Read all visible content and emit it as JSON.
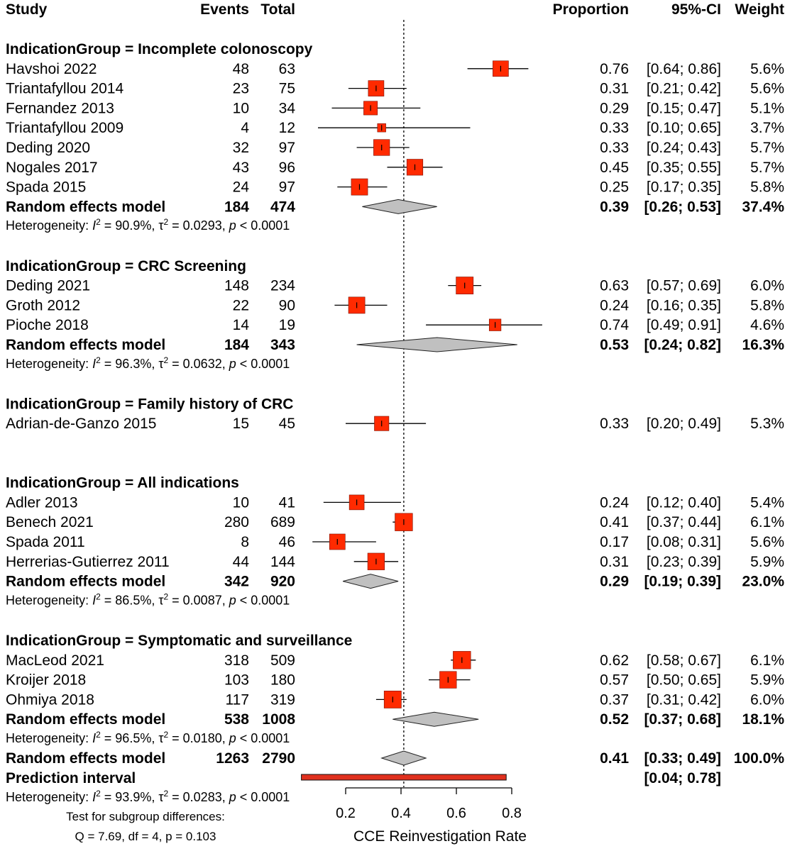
{
  "chart_data": {
    "type": "forest",
    "header": {
      "study": "Study",
      "events": "Events",
      "total": "Total",
      "proportion": "Proportion",
      "ci": "95%-CI",
      "weight": "Weight"
    },
    "groups": [
      {
        "title": "IndicationGroup = Incomplete colonoscopy",
        "studies": [
          {
            "name": "Havshoi 2022",
            "events": "48",
            "total": "63",
            "prop": 0.76,
            "lo": 0.64,
            "hi": 0.86,
            "prop_text": "0.76",
            "ci_text": "[0.64; 0.86]",
            "weight": 5.6,
            "weight_text": "5.6%"
          },
          {
            "name": "Triantafyllou 2014",
            "events": "23",
            "total": "75",
            "prop": 0.31,
            "lo": 0.21,
            "hi": 0.42,
            "prop_text": "0.31",
            "ci_text": "[0.21; 0.42]",
            "weight": 5.6,
            "weight_text": "5.6%"
          },
          {
            "name": "Fernandez 2013",
            "events": "10",
            "total": "34",
            "prop": 0.29,
            "lo": 0.15,
            "hi": 0.47,
            "prop_text": "0.29",
            "ci_text": "[0.15; 0.47]",
            "weight": 5.1,
            "weight_text": "5.1%"
          },
          {
            "name": "Triantafyllou 2009",
            "events": "4",
            "total": "12",
            "prop": 0.33,
            "lo": 0.1,
            "hi": 0.65,
            "prop_text": "0.33",
            "ci_text": "[0.10; 0.65]",
            "weight": 3.7,
            "weight_text": "3.7%"
          },
          {
            "name": "Deding 2020",
            "events": "32",
            "total": "97",
            "prop": 0.33,
            "lo": 0.24,
            "hi": 0.43,
            "prop_text": "0.33",
            "ci_text": "[0.24; 0.43]",
            "weight": 5.7,
            "weight_text": "5.7%"
          },
          {
            "name": "Nogales 2017",
            "events": "43",
            "total": "96",
            "prop": 0.45,
            "lo": 0.35,
            "hi": 0.55,
            "prop_text": "0.45",
            "ci_text": "[0.35; 0.55]",
            "weight": 5.7,
            "weight_text": "5.7%"
          },
          {
            "name": "Spada 2015",
            "events": "24",
            "total": "97",
            "prop": 0.25,
            "lo": 0.17,
            "hi": 0.35,
            "prop_text": "0.25",
            "ci_text": "[0.17; 0.35]",
            "weight": 5.8,
            "weight_text": "5.8%"
          }
        ],
        "model": {
          "label": "Random effects model",
          "events": "184",
          "total": "474",
          "prop": 0.39,
          "lo": 0.26,
          "hi": 0.53,
          "prop_text": "0.39",
          "ci_text": "[0.26; 0.53]",
          "weight_text": "37.4%"
        },
        "het": {
          "i2": "90.9%",
          "tau2": "0.0293",
          "p": "< 0.0001"
        }
      },
      {
        "title": "IndicationGroup = CRC Screening",
        "studies": [
          {
            "name": "Deding 2021",
            "events": "148",
            "total": "234",
            "prop": 0.63,
            "lo": 0.57,
            "hi": 0.69,
            "prop_text": "0.63",
            "ci_text": "[0.57; 0.69]",
            "weight": 6.0,
            "weight_text": "6.0%"
          },
          {
            "name": "Groth 2012",
            "events": "22",
            "total": "90",
            "prop": 0.24,
            "lo": 0.16,
            "hi": 0.35,
            "prop_text": "0.24",
            "ci_text": "[0.16; 0.35]",
            "weight": 5.8,
            "weight_text": "5.8%"
          },
          {
            "name": "Pioche 2018",
            "events": "14",
            "total": "19",
            "prop": 0.74,
            "lo": 0.49,
            "hi": 0.91,
            "prop_text": "0.74",
            "ci_text": "[0.49; 0.91]",
            "weight": 4.6,
            "weight_text": "4.6%"
          }
        ],
        "model": {
          "label": "Random effects model",
          "events": "184",
          "total": "343",
          "prop": 0.53,
          "lo": 0.24,
          "hi": 0.82,
          "prop_text": "0.53",
          "ci_text": "[0.24; 0.82]",
          "weight_text": "16.3%"
        },
        "het": {
          "i2": "96.3%",
          "tau2": "0.0632",
          "p": "< 0.0001"
        }
      },
      {
        "title": "IndicationGroup = Family history of CRC",
        "studies": [
          {
            "name": "Adrian-de-Ganzo 2015",
            "events": "15",
            "total": "45",
            "prop": 0.33,
            "lo": 0.2,
            "hi": 0.49,
            "prop_text": "0.33",
            "ci_text": "[0.20; 0.49]",
            "weight": 5.3,
            "weight_text": "5.3%"
          }
        ],
        "model": null,
        "het": null
      },
      {
        "title": "IndicationGroup = All indications",
        "studies": [
          {
            "name": "Adler 2013",
            "events": "10",
            "total": "41",
            "prop": 0.24,
            "lo": 0.12,
            "hi": 0.4,
            "prop_text": "0.24",
            "ci_text": "[0.12; 0.40]",
            "weight": 5.4,
            "weight_text": "5.4%"
          },
          {
            "name": "Benech 2021",
            "events": "280",
            "total": "689",
            "prop": 0.41,
            "lo": 0.37,
            "hi": 0.44,
            "prop_text": "0.41",
            "ci_text": "[0.37; 0.44]",
            "weight": 6.1,
            "weight_text": "6.1%"
          },
          {
            "name": "Spada 2011",
            "events": "8",
            "total": "46",
            "prop": 0.17,
            "lo": 0.08,
            "hi": 0.31,
            "prop_text": "0.17",
            "ci_text": "[0.08; 0.31]",
            "weight": 5.6,
            "weight_text": "5.6%"
          },
          {
            "name": "Herrerias-Gutierrez 2011",
            "events": "44",
            "total": "144",
            "prop": 0.31,
            "lo": 0.23,
            "hi": 0.39,
            "prop_text": "0.31",
            "ci_text": "[0.23; 0.39]",
            "weight": 5.9,
            "weight_text": "5.9%"
          }
        ],
        "model": {
          "label": "Random effects model",
          "events": "342",
          "total": "920",
          "prop": 0.29,
          "lo": 0.19,
          "hi": 0.39,
          "prop_text": "0.29",
          "ci_text": "[0.19; 0.39]",
          "weight_text": "23.0%"
        },
        "het": {
          "i2": "86.5%",
          "tau2": "0.0087",
          "p": "< 0.0001"
        }
      },
      {
        "title": "IndicationGroup = Symptomatic and surveillance",
        "studies": [
          {
            "name": "MacLeod 2021",
            "events": "318",
            "total": "509",
            "prop": 0.62,
            "lo": 0.58,
            "hi": 0.67,
            "prop_text": "0.62",
            "ci_text": "[0.58; 0.67]",
            "weight": 6.1,
            "weight_text": "6.1%"
          },
          {
            "name": "Kroijer 2018",
            "events": "103",
            "total": "180",
            "prop": 0.57,
            "lo": 0.5,
            "hi": 0.65,
            "prop_text": "0.57",
            "ci_text": "[0.50; 0.65]",
            "weight": 5.9,
            "weight_text": "5.9%"
          },
          {
            "name": "Ohmiya 2018",
            "events": "117",
            "total": "319",
            "prop": 0.37,
            "lo": 0.31,
            "hi": 0.42,
            "prop_text": "0.37",
            "ci_text": "[0.31; 0.42]",
            "weight": 6.0,
            "weight_text": "6.0%"
          }
        ],
        "model": {
          "label": "Random effects model",
          "events": "538",
          "total": "1008",
          "prop": 0.52,
          "lo": 0.37,
          "hi": 0.68,
          "prop_text": "0.52",
          "ci_text": "[0.37; 0.68]",
          "weight_text": "18.1%"
        },
        "het": {
          "i2": "96.5%",
          "tau2": "0.0180",
          "p": "< 0.0001"
        }
      }
    ],
    "overall": {
      "label": "Random effects model",
      "events": "1263",
      "total": "2790",
      "prop": 0.41,
      "lo": 0.33,
      "hi": 0.49,
      "prop_text": "0.41",
      "ci_text": "[0.33; 0.49]",
      "weight_text": "100.0%"
    },
    "prediction": {
      "label": "Prediction interval",
      "lo": 0.04,
      "hi": 0.78,
      "ci_text": "[0.04; 0.78]"
    },
    "overall_het": {
      "i2": "93.9%",
      "tau2": "0.0283",
      "p": "< 0.0001"
    },
    "het_prefix": "Heterogeneity: ",
    "subgroup_test": {
      "title": "Test for subgroup differences:",
      "stat": "Q = 7.69, df = 4, p = 0.103"
    },
    "xaxis": {
      "label": "CCE Reinvestigation Rate",
      "ticks": [
        "0.2",
        "0.4",
        "0.6",
        "0.8"
      ],
      "min": 0.2,
      "max": 0.8,
      "reference": 0.41
    },
    "colors": {
      "square": "#ff2a00",
      "diamond": "#c0c0c0",
      "prediction": "#e0301e",
      "line": "#000000"
    }
  }
}
